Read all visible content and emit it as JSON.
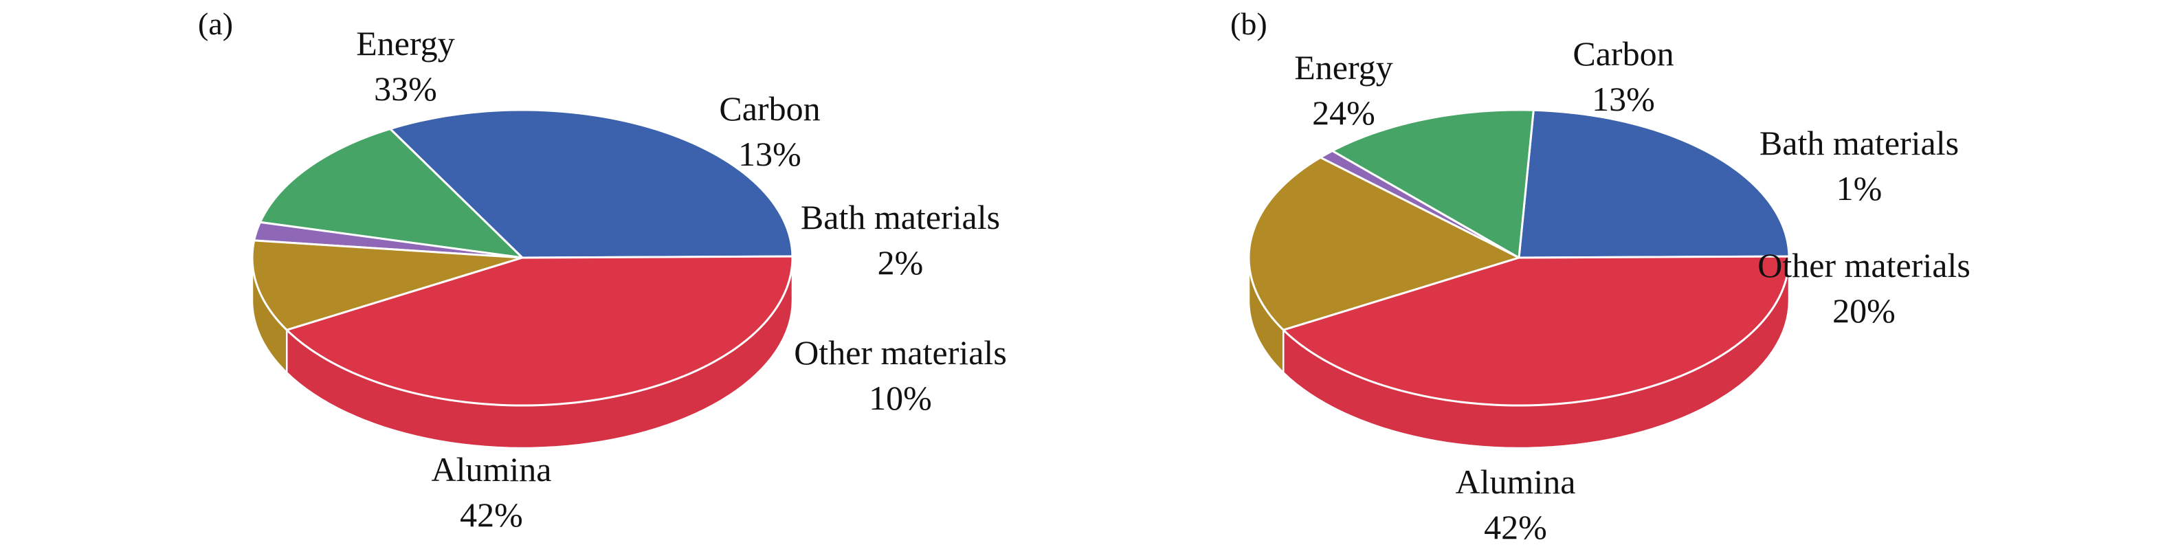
{
  "slice_colors": {
    "Energy": "#3c62ad",
    "Carbon": "#45a466",
    "Bath materials": "#8e68b6",
    "Other materials": "#b38b26",
    "Alumina": "#dc3547"
  },
  "chart_data": [
    {
      "type": "pie",
      "style": "3d",
      "panel_label": "(a)",
      "slices": [
        {
          "name": "Energy",
          "value": 33,
          "label": "Energy",
          "pct": "33%"
        },
        {
          "name": "Carbon",
          "value": 13,
          "label": "Carbon",
          "pct": "13%"
        },
        {
          "name": "Bath materials",
          "value": 2,
          "label": "Bath materials",
          "pct": "2%"
        },
        {
          "name": "Other materials",
          "value": 10,
          "label": "Other materials",
          "pct": "10%"
        },
        {
          "name": "Alumina",
          "value": 42,
          "label": "Alumina",
          "pct": "42%"
        }
      ]
    },
    {
      "type": "pie",
      "style": "3d",
      "panel_label": "(b)",
      "slices": [
        {
          "name": "Energy",
          "value": 24,
          "label": "Energy",
          "pct": "24%"
        },
        {
          "name": "Carbon",
          "value": 13,
          "label": "Carbon",
          "pct": "13%"
        },
        {
          "name": "Bath materials",
          "value": 1,
          "label": "Bath materials",
          "pct": "1%"
        },
        {
          "name": "Other materials",
          "value": 20,
          "label": "Other materials",
          "pct": "20%"
        },
        {
          "name": "Alumina",
          "value": 42,
          "label": "Alumina",
          "pct": "42%"
        }
      ]
    }
  ]
}
